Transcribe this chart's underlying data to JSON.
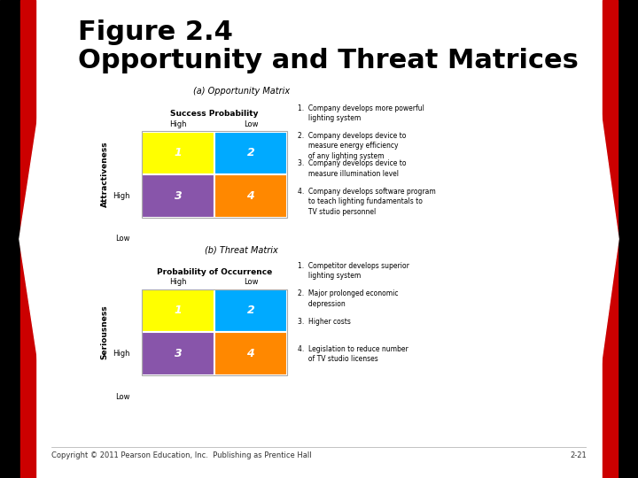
{
  "title": "Figure 2.4\nOpportunity and Threat Matrices",
  "title_fontsize": 22,
  "title_fontweight": "bold",
  "bg_color": "#ffffff",
  "opp_title": "(a) Opportunity Matrix",
  "opp_xlabel": "Success Probability",
  "opp_ylabel": "Attractiveness",
  "opp_col_labels": [
    "High",
    "Low"
  ],
  "opp_row_labels": [
    "High",
    "Low"
  ],
  "opp_cell_colors": [
    [
      "#ffff00",
      "#00aaff"
    ],
    [
      "#8855aa",
      "#ff8800"
    ]
  ],
  "opp_cell_numbers": [
    [
      "1",
      "2"
    ],
    [
      "3",
      "4"
    ]
  ],
  "opp_items": [
    "1.  Company develops more powerful\n     lighting system",
    "2.  Company develops device to\n     measure energy efficiency\n     of any lighting system",
    "3.  Company develops device to\n     measure illumination level",
    "4.  Company develops software program\n     to teach lighting fundamentals to\n     TV studio personnel"
  ],
  "thr_title": "(b) Threat Matrix",
  "thr_xlabel": "Probability of Occurrence",
  "thr_ylabel": "Seriousness",
  "thr_col_labels": [
    "High",
    "Low"
  ],
  "thr_row_labels": [
    "High",
    "Low"
  ],
  "thr_cell_colors": [
    [
      "#ffff00",
      "#00aaff"
    ],
    [
      "#8855aa",
      "#ff8800"
    ]
  ],
  "thr_cell_numbers": [
    [
      "1",
      "2"
    ],
    [
      "3",
      "4"
    ]
  ],
  "thr_items": [
    "1.  Competitor develops superior\n     lighting system",
    "2.  Major prolonged economic\n     depression",
    "3.  Higher costs",
    "4.  Legislation to reduce number\n     of TV studio licenses"
  ],
  "footer_left": "Copyright © 2011 Pearson Education, Inc.  Publishing as Prentice Hall",
  "footer_right": "2-21",
  "left_stripe_color": "#cc0000",
  "right_stripe_color": "#cc0000"
}
